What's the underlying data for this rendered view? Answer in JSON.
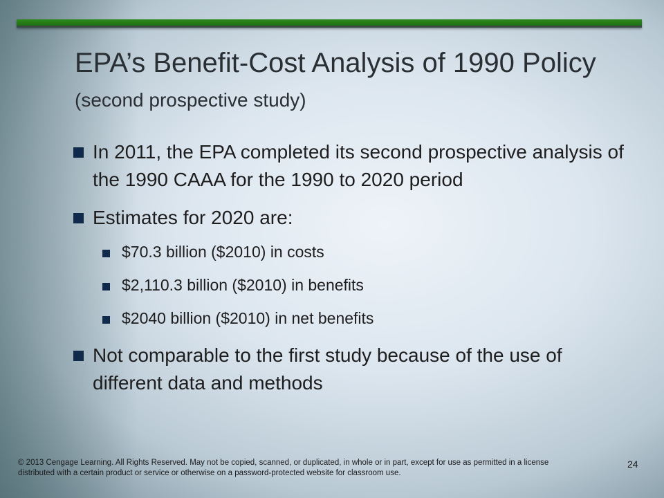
{
  "title": {
    "main": "EPA’s Benefit-Cost Analysis of 1990 Policy",
    "sub": "(second prospective study)"
  },
  "bullets": [
    {
      "text": "In 2011, the EPA completed its second prospective analysis of the 1990 CAAA for the 1990 to 2020 period"
    },
    {
      "text": "Estimates for 2020 are:"
    },
    {
      "text": "$70.3 billion ($2010) in costs"
    },
    {
      "text": "$2,110.3 billion ($2010) in benefits"
    },
    {
      "text": "$2040 billion ($2010) in net benefits"
    },
    {
      "text": "Not comparable to the first study because of the use of different data and methods"
    }
  ],
  "footer": {
    "copyright": "© 2013 Cengage Learning. All Rights Reserved. May not be copied, scanned, or duplicated, in whole or in part, except for use as permitted in a license distributed with a certain product or service or otherwise on a password-protected website for classroom use.",
    "page_number": "24"
  },
  "colors": {
    "accent_bar": "#2f8a1d",
    "bullet_marker": "#0f2a4a",
    "title_text": "#2a2f33"
  }
}
